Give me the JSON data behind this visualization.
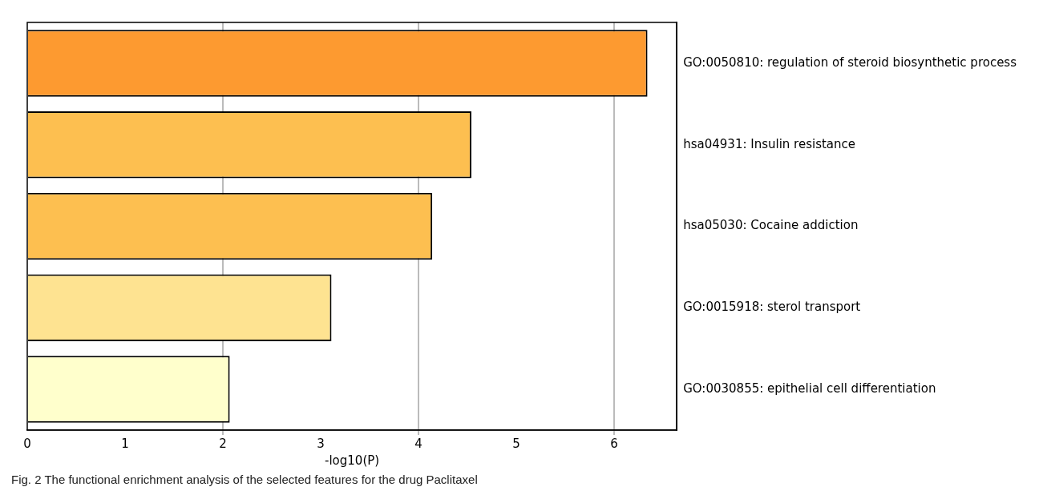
{
  "chart_data": {
    "type": "bar",
    "orientation": "horizontal",
    "categories": [
      "GO:0050810: regulation of steroid biosynthetic process",
      "hsa04931: Insulin resistance",
      "hsa05030: Cocaine addiction",
      "GO:0015918: sterol transport",
      "GO:0030855: epithelial cell differentiation"
    ],
    "values": [
      6.34,
      4.54,
      4.14,
      3.11,
      2.07
    ],
    "colors": [
      "#fd9a30",
      "#fdbf50",
      "#fdbf50",
      "#fee391",
      "#ffffcc"
    ],
    "xlabel": "-log10(P)",
    "xlim": [
      0,
      6.64
    ],
    "xticks": [
      0,
      1,
      2,
      3,
      4,
      5,
      6
    ],
    "grid": "x",
    "legend": false,
    "annotations": [
      "Fig. 2 The functional enrichment analysis of the selected features for the drug Paclitaxel"
    ]
  }
}
